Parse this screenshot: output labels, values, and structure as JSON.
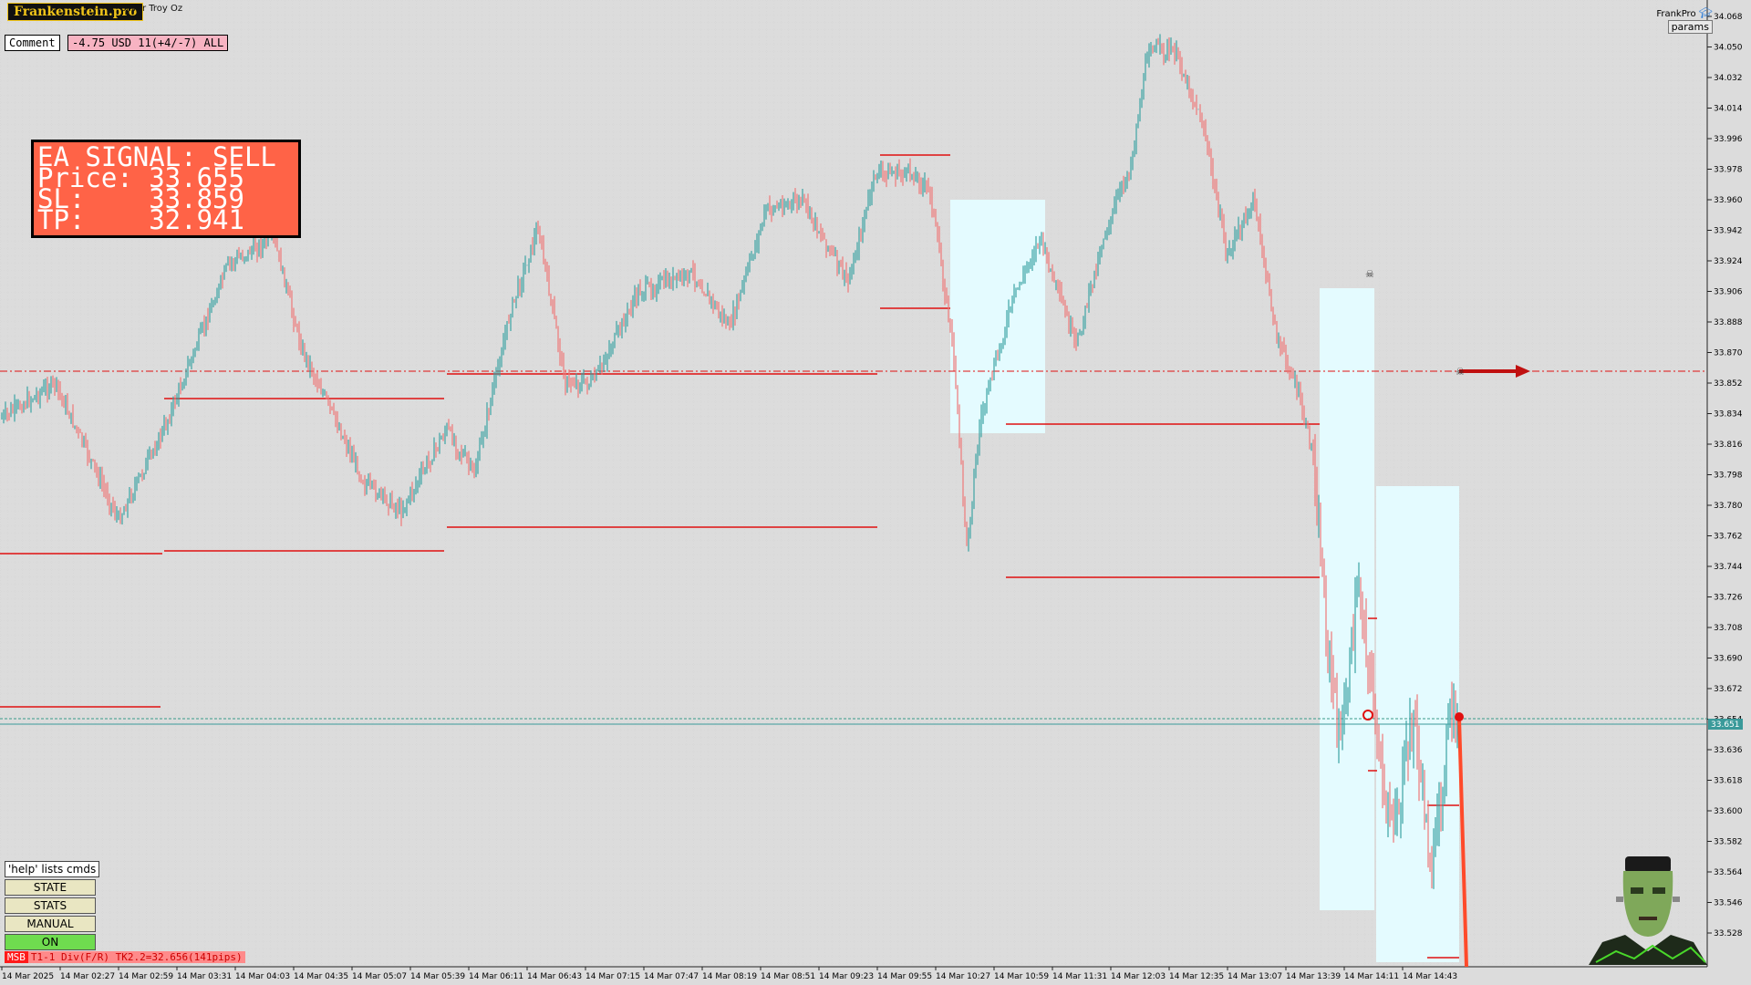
{
  "header": {
    "brand": "Frankenstein.pro",
    "symbol": "Silver Troy Oz",
    "indicator": "FrankPro",
    "params_label": "params"
  },
  "comment": {
    "button_label": "Comment",
    "value": "-4.75 USD 11(+4/-7) ALL"
  },
  "signal_box": {
    "line1": "EA SIGNAL: SELL",
    "line2": "Price: 33.655",
    "line3": "SL:    33.859",
    "line4": "TP:    32.941"
  },
  "side_panel": {
    "help": "'help' lists cmds",
    "buttons": [
      "STATE",
      "STATS",
      "MANUAL",
      "ON"
    ]
  },
  "status_bar": {
    "tag": "MSB",
    "text": "T1-1  Div(F/R) TK2.2=32.656(141pips)"
  },
  "price_axis": {
    "labels": [
      "34.068",
      "34.050",
      "34.032",
      "34.014",
      "33.996",
      "33.978",
      "33.960",
      "33.942",
      "33.924",
      "33.906",
      "33.888",
      "33.870",
      "33.852",
      "33.834",
      "33.816",
      "33.798",
      "33.780",
      "33.762",
      "33.744",
      "33.726",
      "33.708",
      "33.690",
      "33.672",
      "33.654",
      "33.636",
      "33.618",
      "33.600",
      "33.582",
      "33.564",
      "33.546",
      "33.528"
    ],
    "current_price": "33.651"
  },
  "time_axis": {
    "labels": [
      "14 Mar 2025",
      "14 Mar 02:27",
      "14 Mar 02:59",
      "14 Mar 03:31",
      "14 Mar 04:03",
      "14 Mar 04:35",
      "14 Mar 05:07",
      "14 Mar 05:39",
      "14 Mar 06:11",
      "14 Mar 06:43",
      "14 Mar 07:15",
      "14 Mar 07:47",
      "14 Mar 08:19",
      "14 Mar 08:51",
      "14 Mar 09:23",
      "14 Mar 09:55",
      "14 Mar 10:27",
      "14 Mar 10:59",
      "14 Mar 11:31",
      "14 Mar 12:03",
      "14 Mar 12:35",
      "14 Mar 13:07",
      "14 Mar 13:39",
      "14 Mar 14:11",
      "14 Mar 14:43"
    ]
  },
  "colors": {
    "background": "#dcdcdc",
    "bull_candle": "#3ba3a3",
    "bear_candle": "#ee7777",
    "levels": "#e01010",
    "zones": "#e4fbff",
    "signal_bg": "#ff6347"
  }
}
